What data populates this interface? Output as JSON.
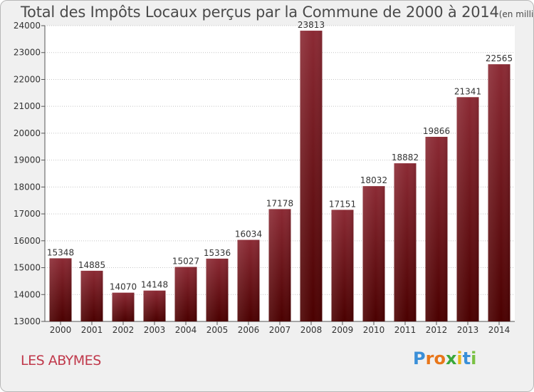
{
  "chart_data": {
    "type": "bar",
    "title": "Total des Impôts Locaux perçus par la Commune de 2000 à 2014",
    "unit": "(en milliers d'€)",
    "categories": [
      "2000",
      "2001",
      "2002",
      "2003",
      "2004",
      "2005",
      "2006",
      "2007",
      "2008",
      "2009",
      "2010",
      "2011",
      "2012",
      "2013",
      "2014"
    ],
    "values": [
      15348,
      14885,
      14070,
      14148,
      15027,
      15336,
      16034,
      17178,
      23813,
      17151,
      18032,
      18882,
      19866,
      21341,
      22565
    ],
    "ylim": [
      13000,
      24000
    ],
    "yticks": [
      13000,
      14000,
      15000,
      16000,
      17000,
      18000,
      19000,
      20000,
      21000,
      22000,
      23000,
      24000
    ],
    "xlabel": "",
    "ylabel": "",
    "grid": true,
    "bar_color_top": "#8b2a34",
    "bar_color_bottom": "#4a0000"
  },
  "commune": "LES ABYMES",
  "logo": {
    "letters": [
      "P",
      "r",
      "o",
      "x",
      "i",
      "t",
      "i"
    ],
    "colors": [
      "#3a8fd8",
      "#e8761a",
      "#e8761a",
      "#3aa83a",
      "#e8b81a",
      "#3a8fd8",
      "#7ac143"
    ]
  }
}
